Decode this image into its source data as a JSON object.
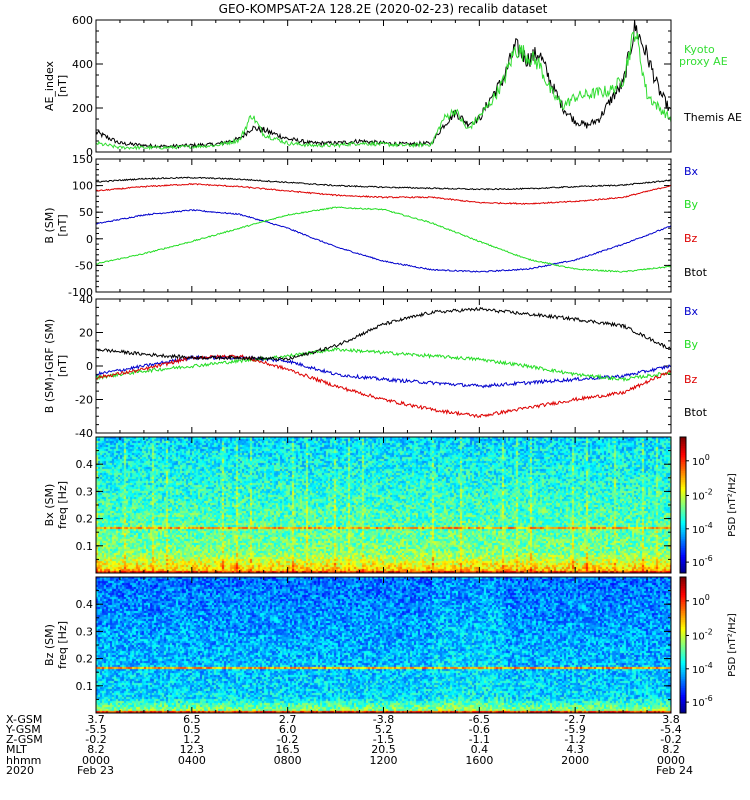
{
  "title": "GEO-KOMPSAT-2A 128.2E (2020-02-23) recalib dataset",
  "colors": {
    "black": "#000000",
    "blue": "#0000cc",
    "green": "#22dd22",
    "red": "#dd0000",
    "kyoto": "#33dd33"
  },
  "chart_data": [
    {
      "type": "line",
      "panel": "ae",
      "ylabel": "AE_index [nT]",
      "ylim": [
        0,
        600
      ],
      "yticks": [
        0,
        200,
        400,
        600
      ],
      "series": [
        {
          "name": "Themis AE",
          "color": "#000000",
          "x": [
            0,
            1,
            2,
            3,
            4,
            5,
            6,
            6.5,
            7,
            8,
            9,
            10,
            11,
            12,
            13,
            14,
            14.5,
            15,
            15.5,
            16,
            16.5,
            17,
            17.5,
            18,
            18.5,
            19,
            19.5,
            20,
            20.5,
            21,
            21.5,
            22,
            22.5,
            23,
            23.5,
            24
          ],
          "y": [
            90,
            40,
            30,
            25,
            30,
            35,
            60,
            110,
            100,
            60,
            40,
            40,
            50,
            40,
            35,
            40,
            120,
            180,
            130,
            150,
            250,
            330,
            480,
            420,
            450,
            310,
            200,
            140,
            120,
            150,
            240,
            310,
            570,
            440,
            280,
            180
          ]
        },
        {
          "name": "Kyoto proxy AE",
          "color": "#33dd33",
          "x": [
            0,
            1,
            2,
            3,
            4,
            5,
            6,
            6.5,
            7,
            8,
            9,
            10,
            11,
            12,
            13,
            14,
            14.5,
            15,
            15.5,
            16,
            16.5,
            17,
            17.5,
            18,
            18.5,
            19,
            19.5,
            20,
            20.5,
            21,
            21.5,
            22,
            22.5,
            23,
            23.5,
            24
          ],
          "y": [
            40,
            20,
            20,
            20,
            25,
            30,
            55,
            170,
            80,
            40,
            30,
            30,
            40,
            35,
            30,
            35,
            150,
            190,
            100,
            160,
            230,
            320,
            470,
            440,
            400,
            270,
            210,
            250,
            260,
            270,
            280,
            330,
            560,
            260,
            200,
            150
          ]
        }
      ]
    },
    {
      "type": "line",
      "panel": "b",
      "ylabel": "B (SM) [nT]",
      "ylim": [
        -100,
        150
      ],
      "yticks": [
        -100,
        -50,
        0,
        50,
        100,
        150
      ],
      "series": [
        {
          "name": "Bx",
          "color": "#0000cc",
          "x": [
            0,
            2,
            4,
            6,
            8,
            10,
            12,
            14,
            16,
            18,
            20,
            22,
            24
          ],
          "y": [
            28,
            45,
            54,
            46,
            20,
            -15,
            -42,
            -58,
            -62,
            -57,
            -40,
            -10,
            24
          ]
        },
        {
          "name": "By",
          "color": "#22dd22",
          "x": [
            0,
            2,
            4,
            6,
            8,
            10,
            12,
            14,
            16,
            18,
            20,
            22,
            24
          ],
          "y": [
            -47,
            -28,
            -5,
            20,
            45,
            59,
            55,
            30,
            -5,
            -38,
            -57,
            -62,
            -52
          ]
        },
        {
          "name": "Bz",
          "color": "#dd0000",
          "x": [
            0,
            2,
            4,
            6,
            8,
            10,
            12,
            14,
            16,
            18,
            20,
            22,
            24
          ],
          "y": [
            90,
            98,
            103,
            98,
            90,
            82,
            78,
            78,
            68,
            66,
            70,
            78,
            100
          ]
        },
        {
          "name": "Btot",
          "color": "#000000",
          "x": [
            0,
            2,
            4,
            6,
            8,
            10,
            12,
            14,
            16,
            18,
            20,
            22,
            24
          ],
          "y": [
            107,
            113,
            115,
            112,
            106,
            100,
            97,
            95,
            93,
            94,
            98,
            101,
            110
          ]
        }
      ]
    },
    {
      "type": "line",
      "panel": "dbb",
      "ylabel": "B (SM)-IGRF (SM) [nT]",
      "ylim": [
        -40,
        40
      ],
      "yticks": [
        -40,
        -20,
        0,
        20,
        40
      ],
      "series": [
        {
          "name": "Bx",
          "color": "#0000cc",
          "x": [
            0,
            2,
            4,
            6,
            8,
            10,
            12,
            14,
            16,
            18,
            20,
            22,
            24
          ],
          "y": [
            -5,
            0,
            5,
            5,
            3,
            -5,
            -8,
            -10,
            -12,
            -10,
            -8,
            -6,
            0
          ]
        },
        {
          "name": "By",
          "color": "#22dd22",
          "x": [
            0,
            2,
            4,
            6,
            8,
            10,
            12,
            14,
            16,
            18,
            20,
            22,
            24
          ],
          "y": [
            -7,
            -3,
            0,
            3,
            6,
            10,
            8,
            6,
            4,
            0,
            -5,
            -8,
            -4
          ]
        },
        {
          "name": "Bz",
          "color": "#dd0000",
          "x": [
            0,
            2,
            4,
            6,
            8,
            10,
            12,
            14,
            16,
            18,
            20,
            22,
            24
          ],
          "y": [
            -7,
            -2,
            5,
            6,
            -2,
            -12,
            -20,
            -26,
            -30,
            -25,
            -20,
            -16,
            -3
          ]
        },
        {
          "name": "Btot",
          "color": "#000000",
          "x": [
            0,
            2,
            4,
            6,
            8,
            10,
            12,
            14,
            16,
            18,
            20,
            22,
            24
          ],
          "y": [
            10,
            7,
            5,
            5,
            4,
            12,
            25,
            32,
            34,
            31,
            28,
            24,
            10
          ]
        }
      ]
    },
    {
      "type": "heatmap",
      "panel": "bx_spec",
      "ylabel": "Bx (SM) freq [Hz]",
      "ylim": [
        0,
        0.5
      ],
      "yticks": [
        0.1,
        0.2,
        0.3,
        0.4
      ],
      "colorbar_label": "PSD [nT^2/Hz]",
      "colorbar_ticks": [
        "10^0",
        "10^-2",
        "10^-4",
        "10^-6"
      ],
      "harmonic_line_hz": 0.166
    },
    {
      "type": "heatmap",
      "panel": "bz_spec",
      "ylabel": "Bz (SM) freq [Hz]",
      "ylim": [
        0,
        0.5
      ],
      "yticks": [
        0.1,
        0.2,
        0.3,
        0.4
      ],
      "colorbar_label": "PSD [nT^2/Hz]",
      "colorbar_ticks": [
        "10^0",
        "10^-2",
        "10^-4",
        "10^-6"
      ],
      "harmonic_line_hz": 0.166
    }
  ],
  "ae_legend": {
    "kyoto1": "Kyoto",
    "kyoto2": "proxy AE",
    "themis": "Themis AE"
  },
  "b_legend": [
    "Bx",
    "By",
    "Bz",
    "Btot"
  ],
  "dbb_legend": [
    "Bx",
    "By",
    "Bz",
    "Btot"
  ],
  "xaxis": {
    "row_labels": [
      "X-GSM",
      "Y-GSM",
      "Z-GSM",
      "MLT",
      "hhmm",
      "2020"
    ],
    "columns": [
      [
        "3.7",
        "-5.5",
        "-0.2",
        "8.2",
        "0000",
        "Feb 23"
      ],
      [
        "6.5",
        "0.5",
        "1.2",
        "12.3",
        "0400",
        ""
      ],
      [
        "2.7",
        "6.0",
        "-0.2",
        "16.5",
        "0800",
        ""
      ],
      [
        "-3.8",
        "5.2",
        "-1.5",
        "20.5",
        "1200",
        ""
      ],
      [
        "-6.5",
        "-0.6",
        "-1.1",
        "0.4",
        "1600",
        ""
      ],
      [
        "-2.7",
        "-5.9",
        "-1.2",
        "4.3",
        "2000",
        ""
      ],
      [
        "3.8",
        "-5.4",
        "-0.2",
        "8.2",
        "0000",
        "Feb 24"
      ]
    ],
    "range_hours": [
      0,
      24
    ]
  }
}
